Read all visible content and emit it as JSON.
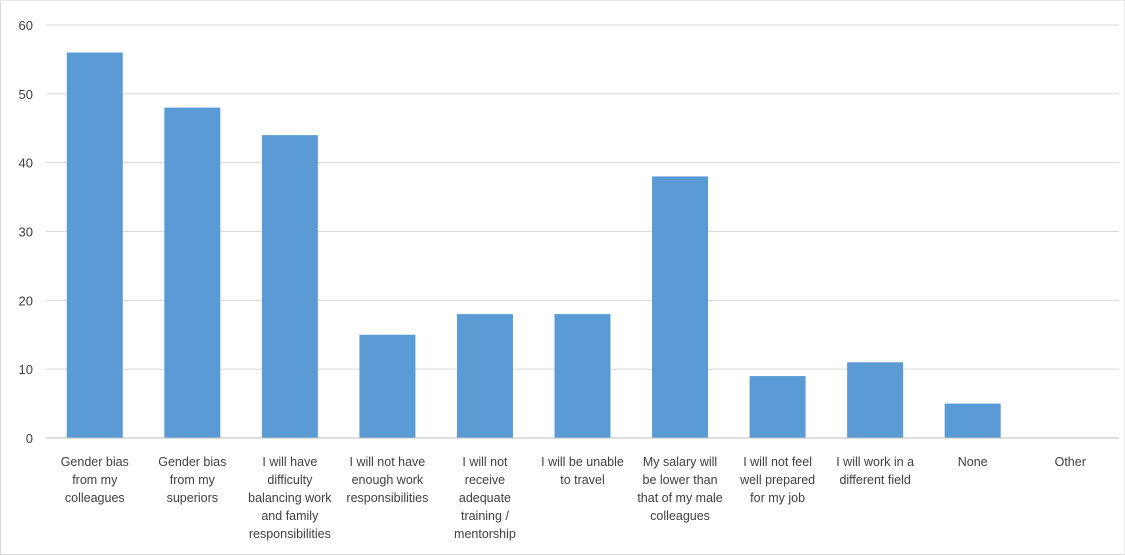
{
  "chart_data": {
    "type": "bar",
    "categories": [
      [
        "Gender bias",
        "from my",
        "colleagues"
      ],
      [
        "Gender bias",
        "from my",
        "superiors"
      ],
      [
        "I will have",
        "difficulty",
        "balancing work",
        "and family",
        "responsibilities"
      ],
      [
        "I will not have",
        "enough work",
        "responsibilities"
      ],
      [
        "I will not",
        "receive",
        "adequate",
        "training /",
        "mentorship"
      ],
      [
        "I will be unable",
        "to travel"
      ],
      [
        "My salary will",
        "be lower than",
        "that of my male",
        "colleagues"
      ],
      [
        "I will not feel",
        "well prepared",
        "for my job"
      ],
      [
        "I will work in a",
        "different field"
      ],
      [
        "None"
      ],
      [
        "Other"
      ]
    ],
    "values": [
      56,
      48,
      44,
      15,
      18,
      18,
      38,
      9,
      11,
      5,
      0
    ],
    "ylim": [
      0,
      60
    ],
    "yticks": [
      0,
      10,
      20,
      30,
      40,
      50,
      60
    ],
    "grid": true,
    "bar_color": "#5b9bd5",
    "title": "",
    "xlabel": "",
    "ylabel": ""
  }
}
